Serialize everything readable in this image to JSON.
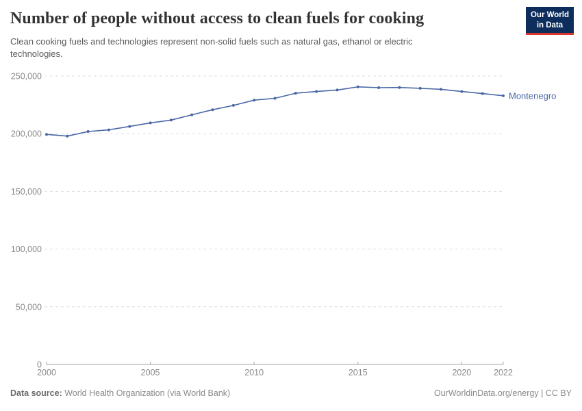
{
  "header": {
    "title": "Number of people without access to clean fuels for cooking",
    "subtitle": "Clean cooking fuels and technologies represent non-solid fuels such as natural gas, ethanol or electric technologies.",
    "logo": {
      "line1": "Our World",
      "line2": "in Data"
    }
  },
  "chart_data": {
    "type": "line",
    "title": "Number of people without access to clean fuels for cooking",
    "xlabel": "",
    "ylabel": "",
    "xlim": [
      2000,
      2022
    ],
    "ylim": [
      0,
      250000
    ],
    "x_ticks": [
      2000,
      2005,
      2010,
      2015,
      2020,
      2022
    ],
    "y_ticks": [
      0,
      50000,
      100000,
      150000,
      200000,
      250000
    ],
    "grid": "horizontal-dashed",
    "legend_position": "end-of-line-label",
    "x": [
      2000,
      2001,
      2002,
      2003,
      2004,
      2005,
      2006,
      2007,
      2008,
      2009,
      2010,
      2011,
      2012,
      2013,
      2014,
      2015,
      2016,
      2017,
      2018,
      2019,
      2020,
      2021,
      2022
    ],
    "series": [
      {
        "name": "Montenegro",
        "color": "#4a67a5",
        "values": [
          199400,
          197900,
          201900,
          203300,
          206300,
          209400,
          211800,
          216400,
          220800,
          224500,
          229100,
          230700,
          235100,
          236600,
          237900,
          240600,
          239900,
          240100,
          239400,
          238500,
          236600,
          234800,
          232900
        ]
      }
    ]
  },
  "footer": {
    "datasource_label": "Data source:",
    "datasource_value": " World Health Organization (via World Bank)",
    "link": "OurWorldinData.org/energy | CC BY"
  },
  "colors": {
    "line": "#4a67a5",
    "logo_bg": "#0d2e5c",
    "logo_bar": "#d8352c",
    "grid": "#dddddd",
    "axis": "#a5a5a5",
    "tick_text": "#888888",
    "title_text": "#333333"
  }
}
